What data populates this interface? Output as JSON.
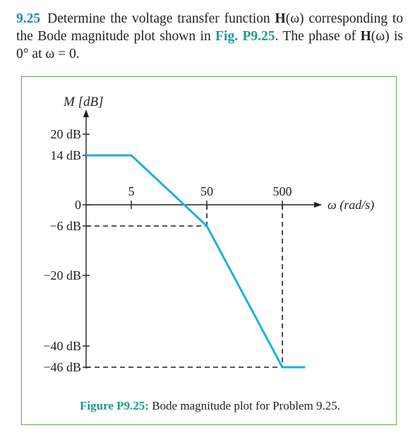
{
  "problem": {
    "number": "9.25",
    "text_1": "Determine the voltage transfer function ",
    "H": "H",
    "omega_arg": "(ω)",
    "text_2": " corresponding to the Bode magnitude plot shown in ",
    "fig_ref": "Fig. P9.25",
    "text_3": ". The phase of ",
    "text_4": " is 0° at ω = 0."
  },
  "caption": {
    "label": "Figure P9.25:",
    "text": " Bode magnitude plot for Problem 9.25."
  },
  "colors": {
    "curve": "#1eaee8",
    "accent": "#1f9a8f",
    "frame": "#5aa94e"
  },
  "chart_data": {
    "type": "line",
    "ylabel": "M [dB]",
    "xlabel": "ω (rad/s)",
    "x_scale": "log",
    "y_ticks": [
      {
        "value": 20,
        "label": "20 dB"
      },
      {
        "value": 14,
        "label": "14 dB"
      },
      {
        "value": 0,
        "label": "0"
      },
      {
        "value": -6,
        "label": "−6 dB"
      },
      {
        "value": -20,
        "label": "−20 dB"
      },
      {
        "value": -40,
        "label": "−40 dB"
      },
      {
        "value": -46,
        "label": "−46 dB"
      }
    ],
    "x_ticks": [
      {
        "value": 5,
        "label": "5"
      },
      {
        "value": 50,
        "label": "50"
      },
      {
        "value": 500,
        "label": "500"
      }
    ],
    "series": [
      {
        "x": [
          0.5,
          5,
          50,
          500,
          1000
        ],
        "y": [
          14,
          14,
          -6,
          -46,
          -46
        ]
      }
    ],
    "guides": [
      {
        "from": [
          0.5,
          -6
        ],
        "to": [
          50,
          -6
        ]
      },
      {
        "from": [
          50,
          0
        ],
        "to": [
          50,
          -6
        ]
      },
      {
        "from": [
          0.5,
          -46
        ],
        "to": [
          500,
          -46
        ]
      },
      {
        "from": [
          500,
          0
        ],
        "to": [
          500,
          -46
        ]
      }
    ]
  }
}
